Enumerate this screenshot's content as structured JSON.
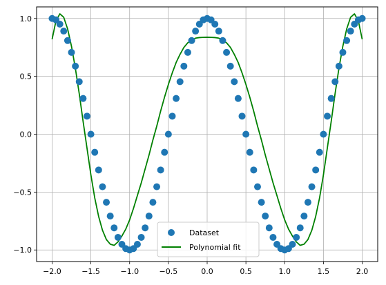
{
  "chart_data": {
    "type": "scatter",
    "title": "",
    "xlabel": "",
    "ylabel": "",
    "xlim": [
      -2.2,
      2.2
    ],
    "ylim": [
      -1.1,
      1.1
    ],
    "grid": true,
    "legend_placement": "lower center",
    "x_ticks": [
      {
        "value": -2.0,
        "label": "−2.0"
      },
      {
        "value": -1.5,
        "label": "−1.5"
      },
      {
        "value": -1.0,
        "label": "−1.0"
      },
      {
        "value": -0.5,
        "label": "−0.5"
      },
      {
        "value": 0.0,
        "label": "0.0"
      },
      {
        "value": 0.5,
        "label": "0.5"
      },
      {
        "value": 1.0,
        "label": "1.0"
      },
      {
        "value": 1.5,
        "label": "1.5"
      },
      {
        "value": 2.0,
        "label": "2.0"
      }
    ],
    "y_ticks": [
      {
        "value": -1.0,
        "label": "−1.0"
      },
      {
        "value": -0.5,
        "label": "−0.5"
      },
      {
        "value": 0.0,
        "label": "0.0"
      },
      {
        "value": 0.5,
        "label": "0.5"
      },
      {
        "value": 1.0,
        "label": "1.0"
      }
    ],
    "series": [
      {
        "name": "Dataset",
        "kind": "scatter",
        "color": "#1f77b4",
        "x": [
          -2.0,
          -1.95,
          -1.9,
          -1.85,
          -1.8,
          -1.75,
          -1.7,
          -1.65,
          -1.6,
          -1.55,
          -1.5,
          -1.45,
          -1.4,
          -1.35,
          -1.3,
          -1.25,
          -1.2,
          -1.15,
          -1.1,
          -1.05,
          -1.0,
          -0.95,
          -0.9,
          -0.85,
          -0.8,
          -0.75,
          -0.7,
          -0.65,
          -0.6,
          -0.55,
          -0.5,
          -0.45,
          -0.4,
          -0.35,
          -0.3,
          -0.25,
          -0.2,
          -0.15,
          -0.1,
          -0.05,
          0.0,
          0.05,
          0.1,
          0.15,
          0.2,
          0.25,
          0.3,
          0.35,
          0.4,
          0.45,
          0.5,
          0.55,
          0.6,
          0.65,
          0.7,
          0.75,
          0.8,
          0.85,
          0.9,
          0.95,
          1.0,
          1.05,
          1.1,
          1.15,
          1.2,
          1.25,
          1.3,
          1.35,
          1.4,
          1.45,
          1.5,
          1.55,
          1.6,
          1.65,
          1.7,
          1.75,
          1.8,
          1.85,
          1.9,
          1.95,
          2.0
        ],
        "y": [
          1.0,
          0.988,
          0.951,
          0.891,
          0.809,
          0.707,
          0.588,
          0.454,
          0.309,
          0.156,
          0.0,
          -0.156,
          -0.309,
          -0.454,
          -0.588,
          -0.707,
          -0.809,
          -0.891,
          -0.951,
          -0.988,
          -1.0,
          -0.988,
          -0.951,
          -0.891,
          -0.809,
          -0.707,
          -0.588,
          -0.454,
          -0.309,
          -0.156,
          0.0,
          0.156,
          0.309,
          0.454,
          0.588,
          0.707,
          0.809,
          0.891,
          0.951,
          0.988,
          1.0,
          0.988,
          0.951,
          0.891,
          0.809,
          0.707,
          0.588,
          0.454,
          0.309,
          0.156,
          0.0,
          -0.156,
          -0.309,
          -0.454,
          -0.588,
          -0.707,
          -0.809,
          -0.891,
          -0.951,
          -0.988,
          -1.0,
          -0.988,
          -0.951,
          -0.891,
          -0.809,
          -0.707,
          -0.588,
          -0.454,
          -0.309,
          -0.156,
          0.0,
          0.156,
          0.309,
          0.454,
          0.588,
          0.707,
          0.809,
          0.891,
          0.951,
          0.988,
          1.0
        ]
      },
      {
        "name": "Polynomial fit",
        "kind": "line",
        "color": "#008000",
        "x": [
          -2.0,
          -1.95,
          -1.9,
          -1.85,
          -1.8,
          -1.75,
          -1.7,
          -1.65,
          -1.6,
          -1.55,
          -1.5,
          -1.45,
          -1.4,
          -1.35,
          -1.3,
          -1.25,
          -1.2,
          -1.15,
          -1.1,
          -1.05,
          -1.0,
          -0.95,
          -0.9,
          -0.85,
          -0.8,
          -0.75,
          -0.7,
          -0.65,
          -0.6,
          -0.55,
          -0.5,
          -0.45,
          -0.4,
          -0.35,
          -0.3,
          -0.25,
          -0.2,
          -0.15,
          -0.1,
          -0.05,
          0.0,
          0.05,
          0.1,
          0.15,
          0.2,
          0.25,
          0.3,
          0.35,
          0.4,
          0.45,
          0.5,
          0.55,
          0.6,
          0.65,
          0.7,
          0.75,
          0.8,
          0.85,
          0.9,
          0.95,
          1.0,
          1.05,
          1.1,
          1.15,
          1.2,
          1.25,
          1.3,
          1.35,
          1.4,
          1.45,
          1.5,
          1.55,
          1.6,
          1.65,
          1.7,
          1.75,
          1.8,
          1.85,
          1.9,
          1.95,
          2.0
        ],
        "y": [
          0.82,
          0.98,
          1.04,
          1.01,
          0.91,
          0.76,
          0.57,
          0.35,
          0.11,
          -0.12,
          -0.35,
          -0.55,
          -0.71,
          -0.83,
          -0.91,
          -0.95,
          -0.96,
          -0.93,
          -0.88,
          -0.82,
          -0.74,
          -0.64,
          -0.53,
          -0.42,
          -0.3,
          -0.18,
          -0.05,
          0.07,
          0.2,
          0.32,
          0.43,
          0.53,
          0.62,
          0.69,
          0.75,
          0.79,
          0.81,
          0.83,
          0.835,
          0.837,
          0.838,
          0.837,
          0.835,
          0.83,
          0.81,
          0.79,
          0.75,
          0.69,
          0.62,
          0.53,
          0.43,
          0.32,
          0.2,
          0.07,
          -0.05,
          -0.18,
          -0.3,
          -0.42,
          -0.53,
          -0.64,
          -0.74,
          -0.82,
          -0.88,
          -0.93,
          -0.96,
          -0.95,
          -0.91,
          -0.83,
          -0.71,
          -0.55,
          -0.35,
          -0.12,
          0.11,
          0.35,
          0.57,
          0.76,
          0.91,
          1.01,
          1.04,
          0.98,
          0.82
        ]
      }
    ]
  }
}
